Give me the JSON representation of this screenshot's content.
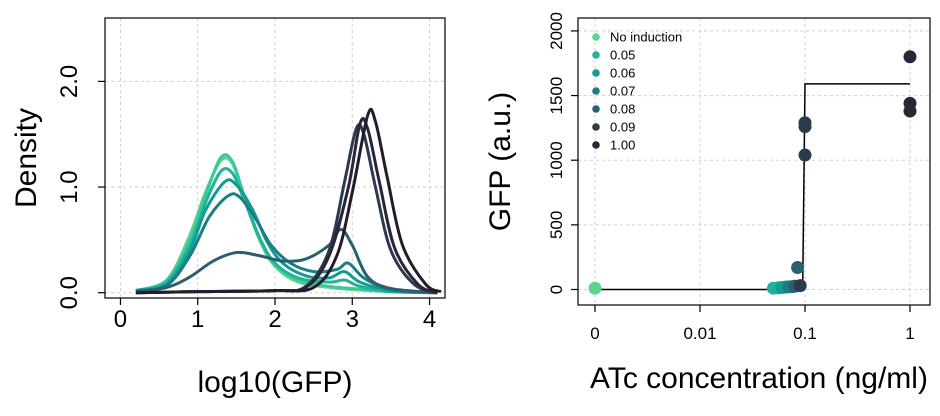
{
  "chart_data": [
    {
      "type": "line",
      "xlabel": "log10(GFP)",
      "ylabel": "Density",
      "xlim": [
        -0.2,
        4.2
      ],
      "ylim": [
        -0.05,
        2.6
      ],
      "xticks": [
        0,
        1,
        2,
        3,
        4
      ],
      "xtick_labels": [
        "0",
        "1",
        "2",
        "3",
        "4"
      ],
      "yticks": [
        0.0,
        1.0,
        2.0
      ],
      "ytick_labels": [
        "0.0",
        "1.0",
        "2.0"
      ],
      "grid": true,
      "series": [
        {
          "color": "#5fd38d",
          "values": [
            [
              0.2,
              0.02
            ],
            [
              0.6,
              0.12
            ],
            [
              0.9,
              0.55
            ],
            [
              1.1,
              0.95
            ],
            [
              1.3,
              1.25
            ],
            [
              1.45,
              1.22
            ],
            [
              1.6,
              0.9
            ],
            [
              1.8,
              0.5
            ],
            [
              2.0,
              0.25
            ],
            [
              2.3,
              0.1
            ],
            [
              2.7,
              0.05
            ],
            [
              3.0,
              0.03
            ],
            [
              3.5,
              0.01
            ],
            [
              4.1,
              0.0
            ]
          ]
        },
        {
          "color": "#3cc99a",
          "values": [
            [
              0.2,
              0.02
            ],
            [
              0.6,
              0.12
            ],
            [
              0.9,
              0.5
            ],
            [
              1.1,
              0.92
            ],
            [
              1.3,
              1.28
            ],
            [
              1.45,
              1.24
            ],
            [
              1.6,
              0.92
            ],
            [
              1.8,
              0.52
            ],
            [
              2.0,
              0.27
            ],
            [
              2.3,
              0.12
            ],
            [
              2.7,
              0.06
            ],
            [
              3.0,
              0.04
            ],
            [
              3.5,
              0.01
            ],
            [
              4.1,
              0.0
            ]
          ]
        },
        {
          "color": "#20b39a",
          "values": [
            [
              0.2,
              0.02
            ],
            [
              0.6,
              0.1
            ],
            [
              0.9,
              0.45
            ],
            [
              1.1,
              0.85
            ],
            [
              1.3,
              1.15
            ],
            [
              1.45,
              1.13
            ],
            [
              1.6,
              0.88
            ],
            [
              1.8,
              0.52
            ],
            [
              2.0,
              0.28
            ],
            [
              2.3,
              0.14
            ],
            [
              2.7,
              0.1
            ],
            [
              2.9,
              0.12
            ],
            [
              3.1,
              0.06
            ],
            [
              3.5,
              0.01
            ],
            [
              4.1,
              0.0
            ]
          ]
        },
        {
          "color": "#139a92",
          "values": [
            [
              0.2,
              0.02
            ],
            [
              0.6,
              0.08
            ],
            [
              0.9,
              0.4
            ],
            [
              1.1,
              0.78
            ],
            [
              1.35,
              1.05
            ],
            [
              1.5,
              1.02
            ],
            [
              1.7,
              0.8
            ],
            [
              1.9,
              0.48
            ],
            [
              2.1,
              0.28
            ],
            [
              2.4,
              0.16
            ],
            [
              2.7,
              0.14
            ],
            [
              2.9,
              0.2
            ],
            [
              3.1,
              0.1
            ],
            [
              3.5,
              0.02
            ],
            [
              4.1,
              0.0
            ]
          ]
        },
        {
          "color": "#1a7e84",
          "values": [
            [
              0.2,
              0.02
            ],
            [
              0.6,
              0.07
            ],
            [
              0.9,
              0.35
            ],
            [
              1.15,
              0.72
            ],
            [
              1.4,
              0.92
            ],
            [
              1.55,
              0.9
            ],
            [
              1.75,
              0.7
            ],
            [
              1.95,
              0.45
            ],
            [
              2.2,
              0.28
            ],
            [
              2.5,
              0.2
            ],
            [
              2.8,
              0.22
            ],
            [
              2.95,
              0.28
            ],
            [
              3.15,
              0.14
            ],
            [
              3.5,
              0.03
            ],
            [
              4.1,
              0.0
            ]
          ]
        },
        {
          "color": "#2a5f6e",
          "values": [
            [
              0.2,
              0.01
            ],
            [
              0.6,
              0.05
            ],
            [
              0.9,
              0.15
            ],
            [
              1.2,
              0.3
            ],
            [
              1.5,
              0.38
            ],
            [
              1.8,
              0.35
            ],
            [
              2.1,
              0.3
            ],
            [
              2.4,
              0.32
            ],
            [
              2.7,
              0.45
            ],
            [
              2.85,
              0.6
            ],
            [
              3.0,
              0.45
            ],
            [
              3.2,
              0.15
            ],
            [
              3.5,
              0.04
            ],
            [
              4.1,
              0.0
            ]
          ]
        },
        {
          "color": "#2b3a4e",
          "values": [
            [
              0.2,
              0.0
            ],
            [
              1.0,
              0.01
            ],
            [
              2.0,
              0.02
            ],
            [
              2.4,
              0.06
            ],
            [
              2.7,
              0.4
            ],
            [
              2.9,
              1.05
            ],
            [
              3.05,
              1.55
            ],
            [
              3.15,
              1.5
            ],
            [
              3.3,
              1.0
            ],
            [
              3.5,
              0.4
            ],
            [
              3.8,
              0.08
            ],
            [
              4.1,
              0.0
            ]
          ]
        },
        {
          "color": "#2c2538",
          "values": [
            [
              0.2,
              0.0
            ],
            [
              1.0,
              0.01
            ],
            [
              2.0,
              0.02
            ],
            [
              2.4,
              0.05
            ],
            [
              2.7,
              0.35
            ],
            [
              2.95,
              1.0
            ],
            [
              3.1,
              1.6
            ],
            [
              3.2,
              1.55
            ],
            [
              3.35,
              1.05
            ],
            [
              3.55,
              0.42
            ],
            [
              3.85,
              0.08
            ],
            [
              4.1,
              0.0
            ]
          ]
        },
        {
          "color": "#241c2c",
          "values": [
            [
              0.2,
              0.0
            ],
            [
              1.0,
              0.01
            ],
            [
              2.0,
              0.02
            ],
            [
              2.5,
              0.05
            ],
            [
              2.8,
              0.35
            ],
            [
              3.0,
              0.95
            ],
            [
              3.2,
              1.68
            ],
            [
              3.3,
              1.62
            ],
            [
              3.45,
              1.1
            ],
            [
              3.65,
              0.45
            ],
            [
              3.95,
              0.08
            ],
            [
              4.15,
              0.01
            ]
          ]
        }
      ]
    },
    {
      "type": "scatter",
      "xlabel": "ATc concentration (ng/ml)",
      "ylabel": "GFP (a.u.)",
      "xscale": "log",
      "xticks": [
        0,
        0.01,
        0.1,
        1
      ],
      "xtick_labels": [
        "0",
        "0.01",
        "0.1",
        "1"
      ],
      "ylim": [
        -120,
        2100
      ],
      "yticks": [
        0,
        500,
        1000,
        1500,
        2000
      ],
      "ytick_labels": [
        "0",
        "500",
        "1000",
        "1500",
        "2000"
      ],
      "grid": true,
      "legend_position": "top-left",
      "legend": [
        {
          "label": "No induction",
          "color": "#5fd38d"
        },
        {
          "label": "0.05",
          "color": "#20b39a"
        },
        {
          "label": "0.06",
          "color": "#139a92"
        },
        {
          "label": "0.07",
          "color": "#1a7e84"
        },
        {
          "label": "0.08",
          "color": "#2a5f6e"
        },
        {
          "label": "0.09",
          "color": "#2b3a4e"
        },
        {
          "label": "1.00",
          "color": "#2c2538"
        }
      ],
      "points": [
        {
          "x": 0,
          "y": 10,
          "color": "#5fd38d"
        },
        {
          "x": 0.05,
          "y": 10,
          "color": "#20b39a"
        },
        {
          "x": 0.055,
          "y": 12,
          "color": "#20b39a"
        },
        {
          "x": 0.06,
          "y": 15,
          "color": "#139a92"
        },
        {
          "x": 0.065,
          "y": 18,
          "color": "#139a92"
        },
        {
          "x": 0.07,
          "y": 20,
          "color": "#1a7e84"
        },
        {
          "x": 0.075,
          "y": 22,
          "color": "#1a7e84"
        },
        {
          "x": 0.08,
          "y": 25,
          "color": "#2a5f6e"
        },
        {
          "x": 0.085,
          "y": 170,
          "color": "#2a5f6e"
        },
        {
          "x": 0.09,
          "y": 30,
          "color": "#2b3a4e"
        },
        {
          "x": 0.1,
          "y": 1040,
          "color": "#2b3a4e"
        },
        {
          "x": 0.1,
          "y": 1260,
          "color": "#2b3a4e"
        },
        {
          "x": 0.1,
          "y": 1290,
          "color": "#2b3a4e"
        },
        {
          "x": 1,
          "y": 1800,
          "color": "#2c2538"
        },
        {
          "x": 1,
          "y": 1440,
          "color": "#2c2538"
        },
        {
          "x": 1,
          "y": 1380,
          "color": "#2c2538"
        }
      ],
      "fit_line": [
        [
          0,
          0
        ],
        [
          0.095,
          0
        ],
        [
          0.1,
          1590
        ],
        [
          1,
          1590
        ]
      ]
    }
  ]
}
